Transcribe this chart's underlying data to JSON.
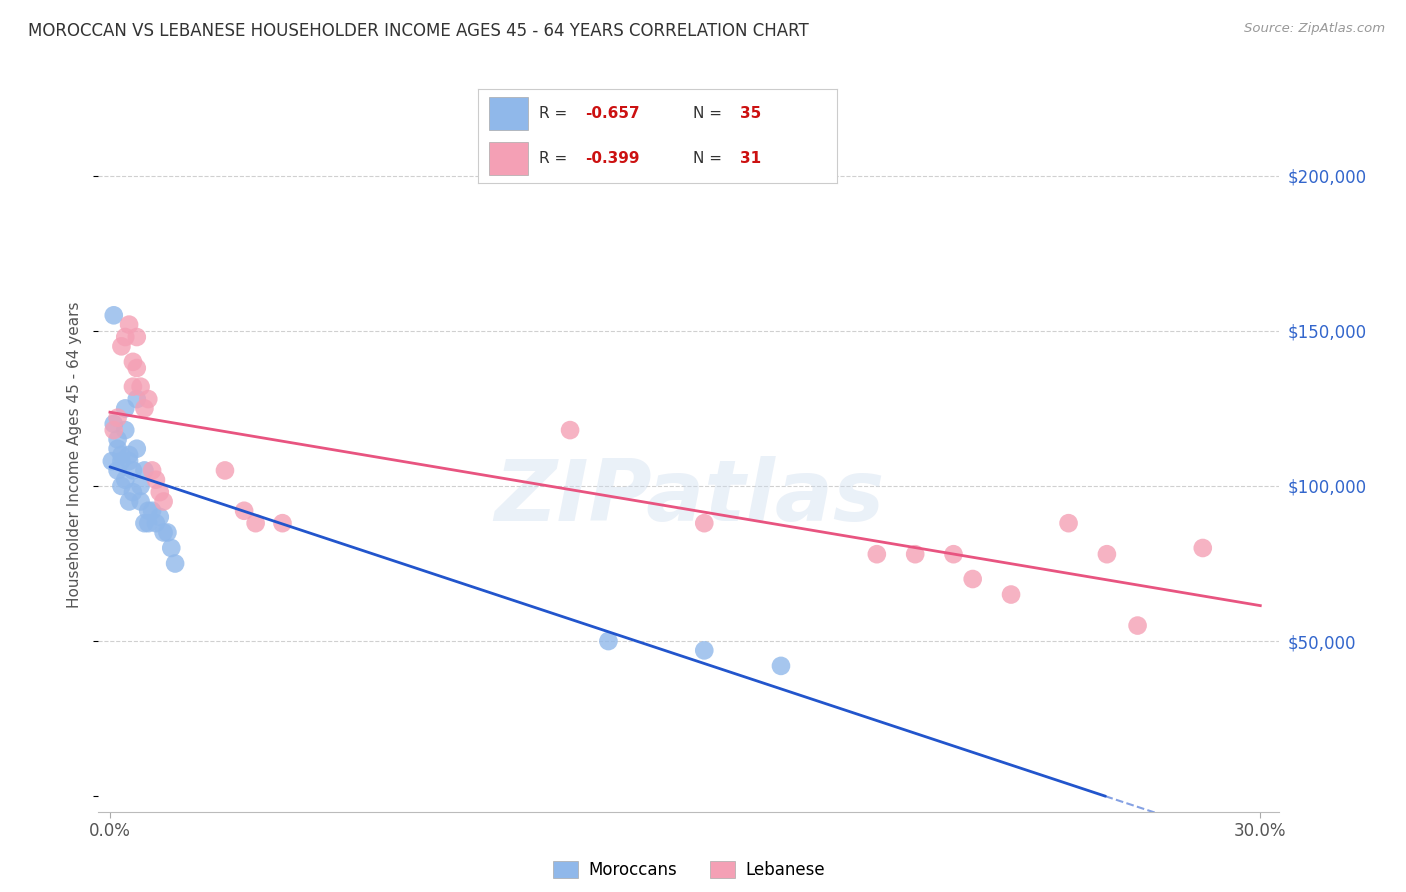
{
  "title": "MOROCCAN VS LEBANESE HOUSEHOLDER INCOME AGES 45 - 64 YEARS CORRELATION CHART",
  "source": "Source: ZipAtlas.com",
  "ylabel": "Householder Income Ages 45 - 64 years",
  "legend_moroccan": "Moroccans",
  "legend_lebanese": "Lebanese",
  "R_moroccan": "-0.657",
  "N_moroccan": "35",
  "R_lebanese": "-0.399",
  "N_lebanese": "31",
  "ytick_labels": [
    "$50,000",
    "$100,000",
    "$150,000",
    "$200,000"
  ],
  "ytick_values": [
    50000,
    100000,
    150000,
    200000
  ],
  "xlim": [
    -0.003,
    0.305
  ],
  "ylim": [
    -5000,
    225000
  ],
  "moroccan_color": "#90b8ea",
  "lebanese_color": "#f4a0b5",
  "moroccan_line_color": "#2255cc",
  "lebanese_line_color": "#e85480",
  "background_color": "#ffffff",
  "grid_color": "#d0d0d0",
  "watermark_text": "ZIPatlas",
  "moroccan_x": [
    0.0005,
    0.001,
    0.001,
    0.002,
    0.002,
    0.002,
    0.003,
    0.003,
    0.003,
    0.004,
    0.004,
    0.004,
    0.005,
    0.005,
    0.005,
    0.006,
    0.006,
    0.007,
    0.007,
    0.008,
    0.008,
    0.009,
    0.009,
    0.01,
    0.01,
    0.011,
    0.012,
    0.013,
    0.014,
    0.015,
    0.016,
    0.017,
    0.13,
    0.155,
    0.175
  ],
  "moroccan_y": [
    108000,
    155000,
    120000,
    112000,
    105000,
    115000,
    110000,
    100000,
    108000,
    125000,
    118000,
    102000,
    108000,
    95000,
    110000,
    105000,
    98000,
    128000,
    112000,
    100000,
    95000,
    105000,
    88000,
    92000,
    88000,
    92000,
    88000,
    90000,
    85000,
    85000,
    80000,
    75000,
    50000,
    47000,
    42000
  ],
  "lebanese_x": [
    0.001,
    0.002,
    0.003,
    0.004,
    0.005,
    0.006,
    0.006,
    0.007,
    0.007,
    0.008,
    0.009,
    0.01,
    0.011,
    0.012,
    0.013,
    0.014,
    0.03,
    0.035,
    0.038,
    0.045,
    0.12,
    0.155,
    0.2,
    0.21,
    0.22,
    0.225,
    0.235,
    0.25,
    0.26,
    0.268,
    0.285
  ],
  "lebanese_y": [
    118000,
    122000,
    145000,
    148000,
    152000,
    140000,
    132000,
    148000,
    138000,
    132000,
    125000,
    128000,
    105000,
    102000,
    98000,
    95000,
    105000,
    92000,
    88000,
    88000,
    118000,
    88000,
    78000,
    78000,
    78000,
    70000,
    65000,
    88000,
    78000,
    55000,
    80000
  ]
}
